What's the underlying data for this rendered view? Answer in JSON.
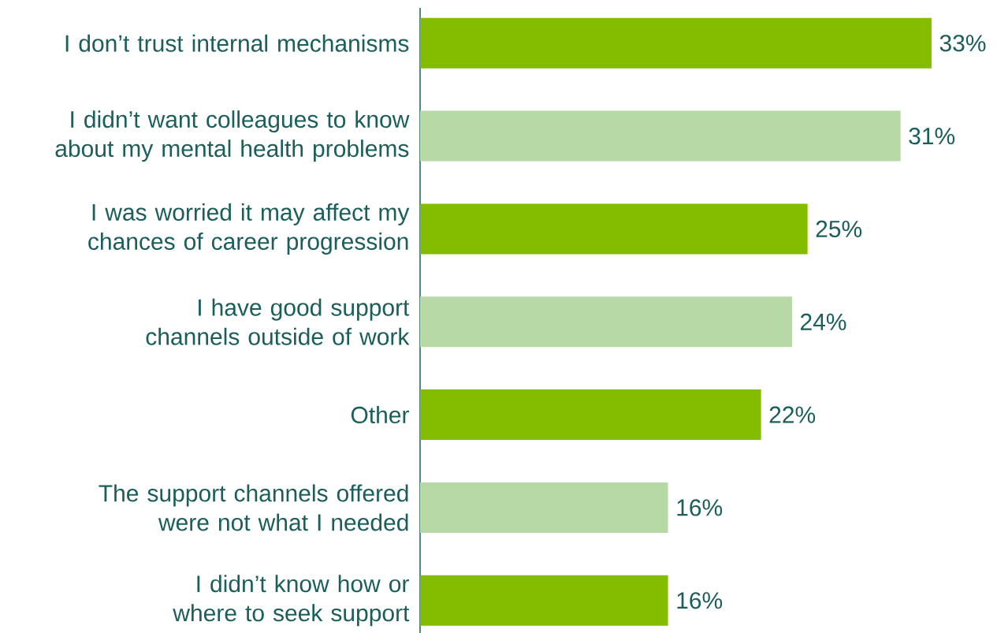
{
  "chart_data": {
    "type": "bar",
    "orientation": "horizontal",
    "categories": [
      "I don’t trust internal mechanisms",
      "I didn’t want colleagues to know about my mental health problems",
      "I was worried it may affect my chances of career progression",
      "I have good support channels outside of work",
      "Other",
      "The support channels offered were not what I needed",
      "I didn’t know how or where to seek support"
    ],
    "values": [
      33,
      31,
      25,
      24,
      22,
      16,
      16
    ],
    "colors": [
      "#84bd00",
      "#b7d9a5",
      "#84bd00",
      "#b7d9a5",
      "#84bd00",
      "#b7d9a5",
      "#84bd00"
    ],
    "value_labels": [
      "33%",
      "31%",
      "25%",
      "24%",
      "22%",
      "16%",
      "16%"
    ]
  }
}
